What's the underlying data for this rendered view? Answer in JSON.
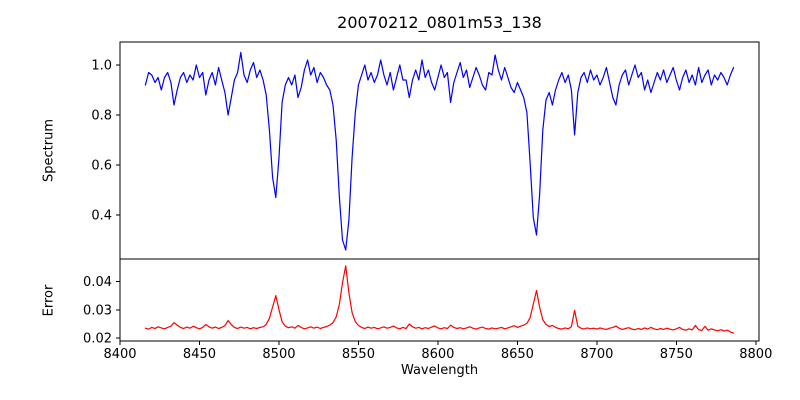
{
  "chart_data": {
    "type": "line",
    "title": "20070212_0801m53_138",
    "xlabel": "Wavelength",
    "grid": false,
    "legend": "none",
    "x_start": 8416,
    "x_step": 2,
    "xlim": [
      8400,
      8802
    ],
    "xticks": [
      8400,
      8450,
      8500,
      8550,
      8600,
      8650,
      8700,
      8750,
      8800
    ],
    "panels": [
      {
        "ylabel": "Spectrum",
        "line_color": "#0000ff",
        "ylim": [
          0.224,
          1.092
        ],
        "yticks": [
          0.4,
          0.6,
          0.8,
          1.0
        ],
        "ytick_labels": [
          "0.4",
          "0.6",
          "0.8",
          "1.0"
        ],
        "values": [
          0.92,
          0.97,
          0.96,
          0.93,
          0.95,
          0.9,
          0.95,
          0.97,
          0.93,
          0.84,
          0.9,
          0.95,
          0.97,
          0.93,
          0.96,
          0.94,
          1.0,
          0.95,
          0.97,
          0.88,
          0.94,
          0.97,
          0.92,
          0.99,
          0.94,
          0.89,
          0.8,
          0.87,
          0.94,
          0.97,
          1.05,
          0.96,
          0.93,
          0.98,
          1.01,
          0.95,
          0.98,
          0.94,
          0.88,
          0.74,
          0.55,
          0.47,
          0.63,
          0.85,
          0.92,
          0.95,
          0.92,
          0.96,
          0.87,
          0.91,
          0.98,
          1.02,
          0.96,
          0.99,
          0.93,
          0.97,
          0.95,
          0.92,
          0.9,
          0.84,
          0.7,
          0.47,
          0.3,
          0.26,
          0.38,
          0.63,
          0.81,
          0.92,
          0.96,
          1.0,
          0.94,
          0.97,
          0.93,
          0.96,
          1.02,
          0.96,
          0.92,
          0.97,
          0.9,
          0.95,
          1.0,
          0.94,
          0.94,
          0.87,
          0.94,
          0.98,
          0.94,
          1.02,
          0.95,
          0.98,
          0.93,
          0.9,
          0.95,
          1.0,
          0.95,
          0.97,
          0.85,
          0.93,
          0.97,
          1.01,
          0.95,
          0.98,
          0.91,
          0.95,
          0.99,
          0.96,
          0.92,
          0.9,
          0.97,
          0.96,
          1.04,
          0.98,
          0.94,
          0.99,
          0.95,
          0.91,
          0.89,
          0.93,
          0.9,
          0.87,
          0.81,
          0.61,
          0.39,
          0.32,
          0.48,
          0.74,
          0.86,
          0.89,
          0.84,
          0.9,
          0.94,
          0.97,
          0.93,
          0.96,
          0.9,
          0.72,
          0.89,
          0.95,
          0.97,
          0.93,
          0.98,
          0.94,
          0.96,
          0.92,
          0.95,
          0.99,
          0.93,
          0.87,
          0.84,
          0.92,
          0.96,
          0.98,
          0.92,
          0.96,
          1.0,
          0.95,
          0.97,
          0.9,
          0.94,
          0.89,
          0.93,
          0.97,
          0.94,
          0.98,
          0.93,
          0.96,
          0.99,
          0.94,
          0.9,
          0.95,
          0.98,
          0.93,
          0.96,
          0.92,
          0.99,
          0.93,
          0.96,
          0.98,
          0.92,
          0.96,
          0.94,
          0.97,
          0.95,
          0.92,
          0.96,
          0.99
        ]
      },
      {
        "ylabel": "Error",
        "line_color": "#ff0000",
        "ylim": [
          0.019,
          0.0479
        ],
        "yticks": [
          0.02,
          0.03,
          0.04
        ],
        "ytick_labels": [
          "0.02",
          "0.03",
          "0.04"
        ],
        "values": [
          0.0235,
          0.0232,
          0.0238,
          0.0234,
          0.024,
          0.0236,
          0.0233,
          0.0238,
          0.0242,
          0.0255,
          0.0246,
          0.0238,
          0.0234,
          0.0239,
          0.0235,
          0.0242,
          0.0237,
          0.0233,
          0.0238,
          0.0248,
          0.024,
          0.0235,
          0.0239,
          0.0234,
          0.0238,
          0.0244,
          0.0262,
          0.0248,
          0.0238,
          0.0234,
          0.0239,
          0.0235,
          0.0238,
          0.0233,
          0.0237,
          0.0234,
          0.0238,
          0.024,
          0.0248,
          0.027,
          0.031,
          0.035,
          0.03,
          0.0258,
          0.0242,
          0.0237,
          0.024,
          0.0235,
          0.0245,
          0.0238,
          0.0233,
          0.0236,
          0.024,
          0.0235,
          0.0239,
          0.0234,
          0.0238,
          0.0241,
          0.0246,
          0.0255,
          0.0275,
          0.032,
          0.0395,
          0.0455,
          0.036,
          0.029,
          0.0258,
          0.0245,
          0.0238,
          0.0234,
          0.0239,
          0.0235,
          0.0238,
          0.0233,
          0.0236,
          0.024,
          0.0235,
          0.0238,
          0.0243,
          0.0236,
          0.0233,
          0.0238,
          0.0234,
          0.025,
          0.024,
          0.0235,
          0.0238,
          0.0233,
          0.0237,
          0.0234,
          0.0239,
          0.0243,
          0.0236,
          0.0233,
          0.0237,
          0.0234,
          0.0246,
          0.0238,
          0.0234,
          0.0237,
          0.0233,
          0.0236,
          0.024,
          0.0235,
          0.0232,
          0.0236,
          0.0239,
          0.0234,
          0.0232,
          0.0236,
          0.0233,
          0.0235,
          0.0238,
          0.0233,
          0.0236,
          0.024,
          0.0244,
          0.0238,
          0.0242,
          0.0246,
          0.0252,
          0.0272,
          0.032,
          0.0368,
          0.031,
          0.0265,
          0.0248,
          0.0241,
          0.0245,
          0.0238,
          0.0234,
          0.0232,
          0.0236,
          0.0233,
          0.024,
          0.0298,
          0.0242,
          0.0235,
          0.0232,
          0.0236,
          0.0233,
          0.0235,
          0.0232,
          0.0236,
          0.0233,
          0.0231,
          0.0235,
          0.0238,
          0.0243,
          0.0235,
          0.0231,
          0.0234,
          0.0237,
          0.0232,
          0.023,
          0.0234,
          0.0231,
          0.0236,
          0.0232,
          0.0238,
          0.0233,
          0.023,
          0.0234,
          0.0231,
          0.0235,
          0.0232,
          0.0229,
          0.0233,
          0.0238,
          0.0231,
          0.0228,
          0.0233,
          0.0229,
          0.0245,
          0.023,
          0.0227,
          0.0242,
          0.0228,
          0.0233,
          0.0229,
          0.0226,
          0.023,
          0.0225,
          0.0228,
          0.0222,
          0.0218
        ]
      }
    ]
  }
}
